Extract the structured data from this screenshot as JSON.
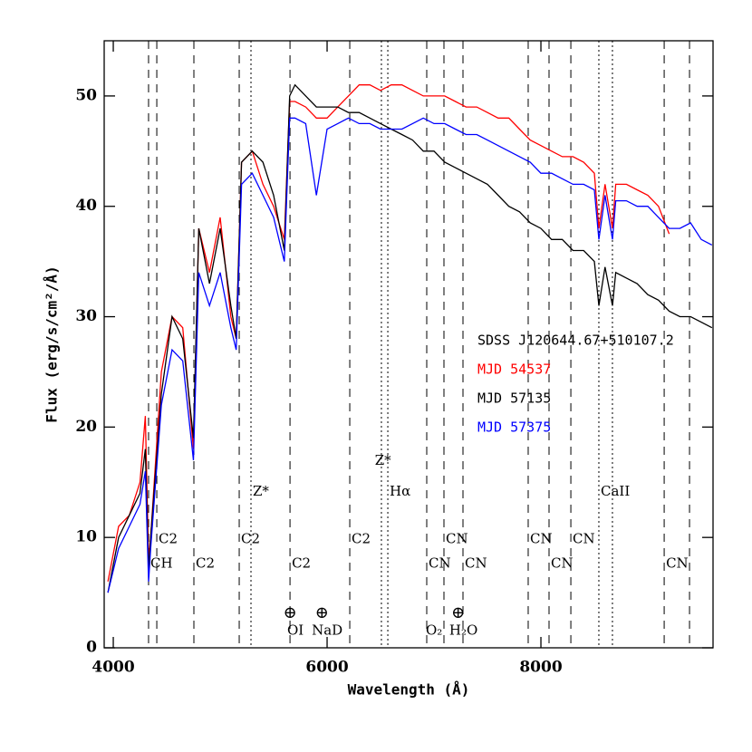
{
  "chart_data": {
    "type": "line",
    "xlabel": "Wavelength (Å)",
    "ylabel": "Flux (erg/s/cm²/Å)",
    "legend_title": "SDSS J120644.67+510107.2",
    "legend": "right",
    "xlim": [
      3915,
      9610
    ],
    "ylim": [
      0,
      55
    ],
    "xticks": [
      4000,
      6000,
      8000
    ],
    "yticks": [
      0,
      10,
      20,
      30,
      40,
      50
    ],
    "x": [
      3950,
      4050,
      4150,
      4250,
      4300,
      4330,
      4350,
      4450,
      4550,
      4650,
      4750,
      4800,
      4900,
      5000,
      5100,
      5150,
      5200,
      5300,
      5400,
      5500,
      5600,
      5650,
      5700,
      5800,
      5900,
      6000,
      6100,
      6200,
      6300,
      6400,
      6500,
      6600,
      6700,
      6800,
      6900,
      7000,
      7100,
      7200,
      7300,
      7400,
      7500,
      7600,
      7700,
      7800,
      7900,
      8000,
      8100,
      8200,
      8300,
      8400,
      8500,
      8542,
      8600,
      8669,
      8700,
      8800,
      8900,
      9000,
      9100,
      9200,
      9300,
      9400,
      9500,
      9600
    ],
    "series": [
      {
        "name": "MJD 54537",
        "color": "#ff0000",
        "values": [
          6,
          11,
          12,
          15,
          21,
          8,
          10,
          25,
          30,
          29,
          18,
          38,
          34,
          39,
          30,
          28,
          44,
          45,
          42,
          40,
          37,
          49.5,
          49.5,
          49,
          48,
          48,
          49,
          50,
          51,
          51,
          50.5,
          51,
          51,
          50.5,
          50,
          50,
          50,
          49.5,
          49,
          49,
          48.5,
          48,
          48,
          47,
          46,
          45.5,
          45,
          44.5,
          44.5,
          44,
          43,
          38,
          42,
          38,
          42,
          42,
          41.5,
          41,
          40,
          37.5,
          null,
          null,
          null,
          null
        ]
      },
      {
        "name": "MJD 57135",
        "color": "#000000",
        "values": [
          5,
          10,
          12,
          14,
          18,
          7,
          10,
          23,
          30,
          28,
          19,
          38,
          33,
          38,
          31,
          28,
          44,
          45,
          44,
          41,
          36,
          50,
          51,
          50,
          49,
          49,
          49,
          48.5,
          48.5,
          48,
          47.5,
          47,
          46.5,
          46,
          45,
          45,
          44,
          43.5,
          43,
          42.5,
          42,
          41,
          40,
          39.5,
          38.5,
          38,
          37,
          37,
          36,
          36,
          35,
          31,
          34.5,
          31,
          34,
          33.5,
          33,
          32,
          31.5,
          30.5,
          30,
          30,
          29.5,
          29
        ]
      },
      {
        "name": "MJD 57375",
        "color": "#0000ff",
        "values": [
          5,
          9,
          11,
          13,
          16,
          6,
          9,
          22,
          27,
          26,
          17,
          34,
          31,
          34,
          29,
          27,
          42,
          43,
          41,
          39,
          35,
          48,
          48,
          47.5,
          41,
          47,
          47.5,
          48,
          47.5,
          47.5,
          47,
          47,
          47,
          47.5,
          48,
          47.5,
          47.5,
          47,
          46.5,
          46.5,
          46,
          45.5,
          45,
          44.5,
          44,
          43,
          43,
          42.5,
          42,
          42,
          41.5,
          37,
          41,
          37,
          40.5,
          40.5,
          40,
          40,
          39,
          38,
          38,
          38.5,
          37,
          36.5
        ]
      }
    ],
    "vlines": [
      {
        "x": 4330,
        "style": "dashed"
      },
      {
        "x": 4407,
        "style": "dashed"
      },
      {
        "x": 4754,
        "style": "dashed"
      },
      {
        "x": 5178,
        "style": "dashed"
      },
      {
        "x": 5288,
        "style": "dotted"
      },
      {
        "x": 5653,
        "style": "dashed"
      },
      {
        "x": 6212,
        "style": "dashed"
      },
      {
        "x": 6508,
        "style": "dotted"
      },
      {
        "x": 6568,
        "style": "dotted"
      },
      {
        "x": 6932,
        "style": "dashed"
      },
      {
        "x": 7093,
        "style": "dashed"
      },
      {
        "x": 7271,
        "style": "dashed"
      },
      {
        "x": 7881,
        "style": "dashed"
      },
      {
        "x": 8076,
        "style": "dashed"
      },
      {
        "x": 8280,
        "style": "dashed"
      },
      {
        "x": 8542,
        "style": "dotted"
      },
      {
        "x": 8669,
        "style": "dotted"
      },
      {
        "x": 9153,
        "style": "dashed"
      },
      {
        "x": 9390,
        "style": "dashed"
      }
    ],
    "annotations": [
      {
        "x": 4330,
        "y": 7.6,
        "text": "CH"
      },
      {
        "x": 4407,
        "y": 9.8,
        "text": "C2"
      },
      {
        "x": 4754,
        "y": 7.6,
        "text": "C2"
      },
      {
        "x": 5178,
        "y": 9.8,
        "text": "C2"
      },
      {
        "x": 5653,
        "y": 7.6,
        "text": "C2"
      },
      {
        "x": 6212,
        "y": 9.8,
        "text": "C2"
      },
      {
        "x": 6932,
        "y": 7.6,
        "text": "CN"
      },
      {
        "x": 7093,
        "y": 9.8,
        "text": "CN"
      },
      {
        "x": 7271,
        "y": 7.6,
        "text": "CN"
      },
      {
        "x": 7881,
        "y": 9.8,
        "text": "CN"
      },
      {
        "x": 8076,
        "y": 7.6,
        "text": "CN"
      },
      {
        "x": 8280,
        "y": 9.8,
        "text": "CN"
      },
      {
        "x": 9153,
        "y": 7.6,
        "text": "CN"
      },
      {
        "x": 5288,
        "y": 14.1,
        "text": "Z*"
      },
      {
        "x": 6430,
        "y": 16.9,
        "text": "Z*"
      },
      {
        "x": 6568,
        "y": 14.1,
        "text": "Hα"
      },
      {
        "x": 8542,
        "y": 14.1,
        "text": "CaII"
      }
    ],
    "tellurics": [
      {
        "x": 5653,
        "symbol": "⊕",
        "label": "OI"
      },
      {
        "x": 5950,
        "symbol": "⊕",
        "label": "NaD"
      },
      {
        "x": 6950,
        "label": "O₂"
      },
      {
        "x": 7225,
        "symbol": "⊕",
        "label": "H₂O"
      }
    ]
  }
}
